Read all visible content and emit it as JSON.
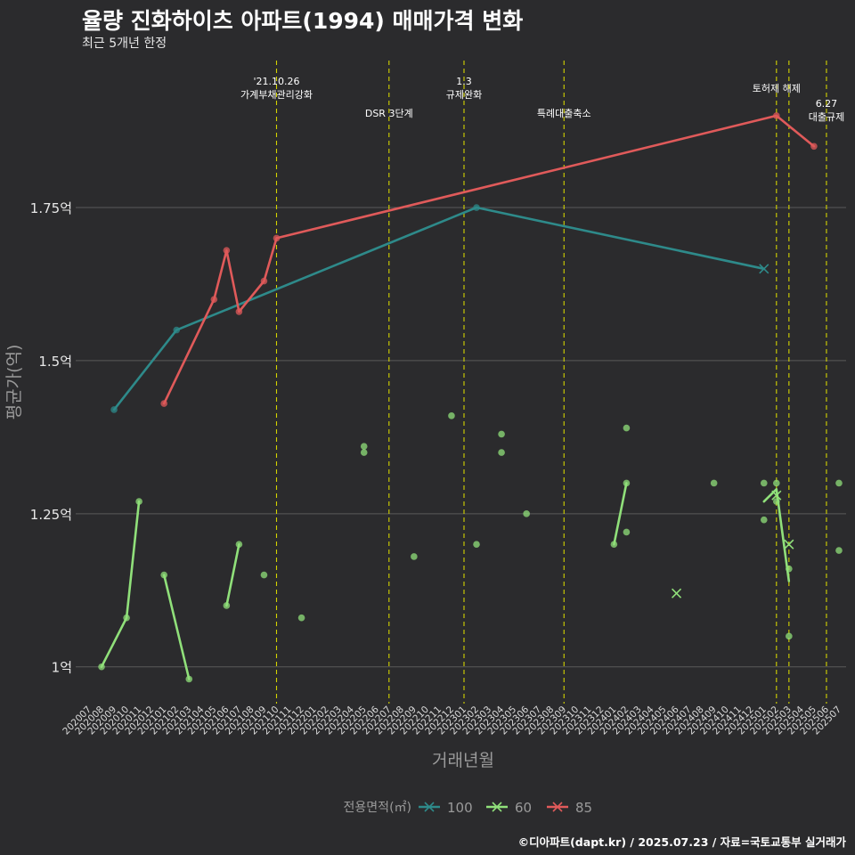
{
  "title": "율량 진화하이츠 아파트(1994) 매매가격 변화",
  "subtitle": "최근 5개년 한정",
  "caption": "©디아파트(dapt.kr) / 2025.07.23 / 자료=국토교통부 실거래가",
  "colors": {
    "background": "#2b2b2d",
    "s100": "#2e8a8a",
    "s60": "#90e07a",
    "s85": "#e05a5a",
    "event_line": "#d4d400",
    "grid": "#5a5a5a"
  },
  "chart_data": {
    "type": "line",
    "title": "율량 진화하이츠 아파트(1994) 매매가격 변화",
    "subtitle": "최근 5개년 한정",
    "xlabel": "거래년월",
    "ylabel": "평균가(억)",
    "ylim": [
      0.94,
      1.99
    ],
    "y_ticks": [
      1.0,
      1.25,
      1.5,
      1.75
    ],
    "y_tick_labels": [
      "1억",
      "1.25억",
      "1.5억",
      "1.75억"
    ],
    "x_categories": [
      "202007",
      "202008",
      "202009",
      "202010",
      "202011",
      "202012",
      "202101",
      "202102",
      "202103",
      "202104",
      "202105",
      "202106",
      "202107",
      "202108",
      "202109",
      "202110",
      "202111",
      "202112",
      "202201",
      "202202",
      "202203",
      "202204",
      "202205",
      "202206",
      "202207",
      "202208",
      "202209",
      "202210",
      "202211",
      "202212",
      "202301",
      "202302",
      "202303",
      "202304",
      "202305",
      "202306",
      "202307",
      "202308",
      "202309",
      "202310",
      "202311",
      "202312",
      "202401",
      "202402",
      "202403",
      "202404",
      "202405",
      "202406",
      "202407",
      "202408",
      "202409",
      "202410",
      "202411",
      "202412",
      "202501",
      "202502",
      "202503",
      "202504",
      "202505",
      "202506",
      "202507"
    ],
    "legend_title": "전용면적(㎡)",
    "legend_position": "bottom",
    "grid": true,
    "series": [
      {
        "name": "100",
        "color": "#2e8a8a",
        "line": [
          [
            "202009",
            1.42
          ],
          [
            "202102",
            1.55
          ],
          [
            "202302",
            1.75
          ],
          [
            "202501",
            1.65
          ]
        ],
        "points": [
          [
            "202009",
            1.42
          ],
          [
            "202102",
            1.55
          ],
          [
            "202302",
            1.75
          ]
        ],
        "crosses": [
          [
            "202501",
            1.65
          ]
        ]
      },
      {
        "name": "60",
        "color": "#90e07a",
        "line_segments": [
          [
            [
              "202008",
              1.0
            ],
            [
              "202010",
              1.08
            ],
            [
              "202011",
              1.27
            ]
          ],
          [
            [
              "202101",
              1.15
            ],
            [
              "202103",
              0.98
            ]
          ],
          [
            [
              "202106",
              1.1
            ],
            [
              "202107",
              1.2
            ]
          ],
          [
            [
              "202401",
              1.2
            ],
            [
              "202402",
              1.3
            ]
          ],
          [
            [
              "202501",
              1.27
            ],
            [
              "202502",
              1.29
            ],
            [
              "202503",
              1.14
            ]
          ]
        ],
        "points": [
          [
            "202008",
            1.0
          ],
          [
            "202010",
            1.08
          ],
          [
            "202011",
            1.27
          ],
          [
            "202101",
            1.15
          ],
          [
            "202103",
            0.98
          ],
          [
            "202106",
            1.1
          ],
          [
            "202107",
            1.2
          ],
          [
            "202109",
            1.15
          ],
          [
            "202112",
            1.08
          ],
          [
            "202205",
            1.36
          ],
          [
            "202205",
            1.35
          ],
          [
            "202209",
            1.18
          ],
          [
            "202212",
            1.41
          ],
          [
            "202302",
            1.2
          ],
          [
            "202304",
            1.38
          ],
          [
            "202304",
            1.35
          ],
          [
            "202306",
            1.25
          ],
          [
            "202401",
            1.2
          ],
          [
            "202402",
            1.3
          ],
          [
            "202402",
            1.39
          ],
          [
            "202402",
            1.22
          ],
          [
            "202409",
            1.3
          ],
          [
            "202501",
            1.3
          ],
          [
            "202501",
            1.24
          ],
          [
            "202502",
            1.3
          ],
          [
            "202502",
            1.27
          ],
          [
            "202503",
            1.16
          ],
          [
            "202503",
            1.05
          ],
          [
            "202507",
            1.3
          ],
          [
            "202507",
            1.19
          ]
        ],
        "crosses": [
          [
            "202406",
            1.12
          ],
          [
            "202502",
            1.28
          ],
          [
            "202503",
            1.2
          ]
        ]
      },
      {
        "name": "85",
        "color": "#e05a5a",
        "line": [
          [
            "202101",
            1.43
          ],
          [
            "202105",
            1.6
          ],
          [
            "202106",
            1.68
          ],
          [
            "202107",
            1.58
          ],
          [
            "202109",
            1.63
          ],
          [
            "202110",
            1.7
          ],
          [
            "202502",
            1.9
          ],
          [
            "202505",
            1.85
          ]
        ],
        "points": [
          [
            "202101",
            1.43
          ],
          [
            "202105",
            1.6
          ],
          [
            "202106",
            1.68
          ],
          [
            "202107",
            1.58
          ],
          [
            "202109",
            1.63
          ],
          [
            "202110",
            1.7
          ],
          [
            "202502",
            1.9
          ],
          [
            "202505",
            1.85
          ]
        ],
        "crosses": []
      }
    ],
    "events": [
      {
        "month": "202110",
        "label": "'21.10.26\n가계부채관리강화",
        "level": "high"
      },
      {
        "month": "202207",
        "label": "DSR 3단계",
        "level": "low"
      },
      {
        "month": "202301",
        "label": "1.3\n규제완화",
        "level": "high"
      },
      {
        "month": "202309",
        "label": "특례대출축소",
        "level": "low"
      },
      {
        "month": "202502",
        "label": "토허제 해제",
        "level": "mid"
      },
      {
        "month": "202503",
        "label": "",
        "level": "none"
      },
      {
        "month": "202506",
        "label": "6.27\n대출규제",
        "level": "right"
      }
    ]
  }
}
